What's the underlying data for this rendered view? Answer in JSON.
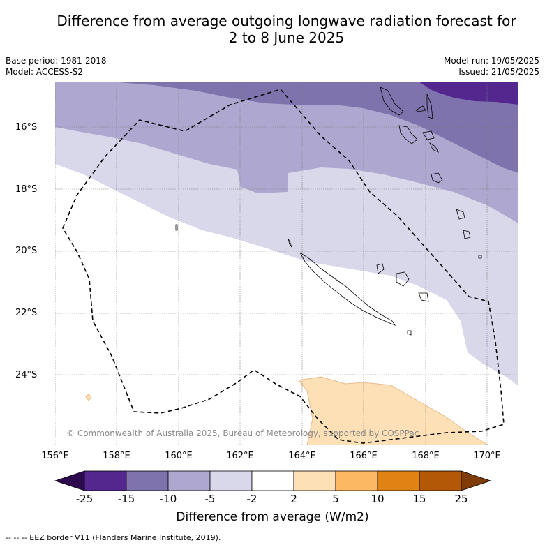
{
  "title_line1": "Difference from average outgoing longwave radiation forecast for",
  "title_line2": "2 to 8 June 2025",
  "base_period": "Base period: 1981-2018",
  "model": "Model: ACCESS-S2",
  "model_run": "Model run: 19/05/2025",
  "issued": "Issued: 21/05/2025",
  "lat_labels": [
    "16°S",
    "18°S",
    "20°S",
    "22°S",
    "24°S"
  ],
  "lon_labels": [
    "156°E",
    "158°E",
    "160°E",
    "162°E",
    "164°E",
    "166°E",
    "168°E",
    "170°E"
  ],
  "copyright": "© Commonwealth of Australia 2025, Bureau of Meteorology, supported by COSPPac",
  "colorbar": {
    "title": "Difference from average (W/m2)",
    "ticks": [
      "-25",
      "-15",
      "-10",
      "-5",
      "-2",
      "2",
      "5",
      "10",
      "15",
      "25"
    ],
    "colors": [
      "#2d0a4e",
      "#54278f",
      "#7f73ad",
      "#aea8d0",
      "#d8d8ea",
      "#ffffff",
      "#fde0b5",
      "#fdb863",
      "#e08214",
      "#b35806",
      "#7f3b08"
    ]
  },
  "eez_legend": "-- -- -- EEZ border V11 (Flanders Marine Institute, 2019)."
}
